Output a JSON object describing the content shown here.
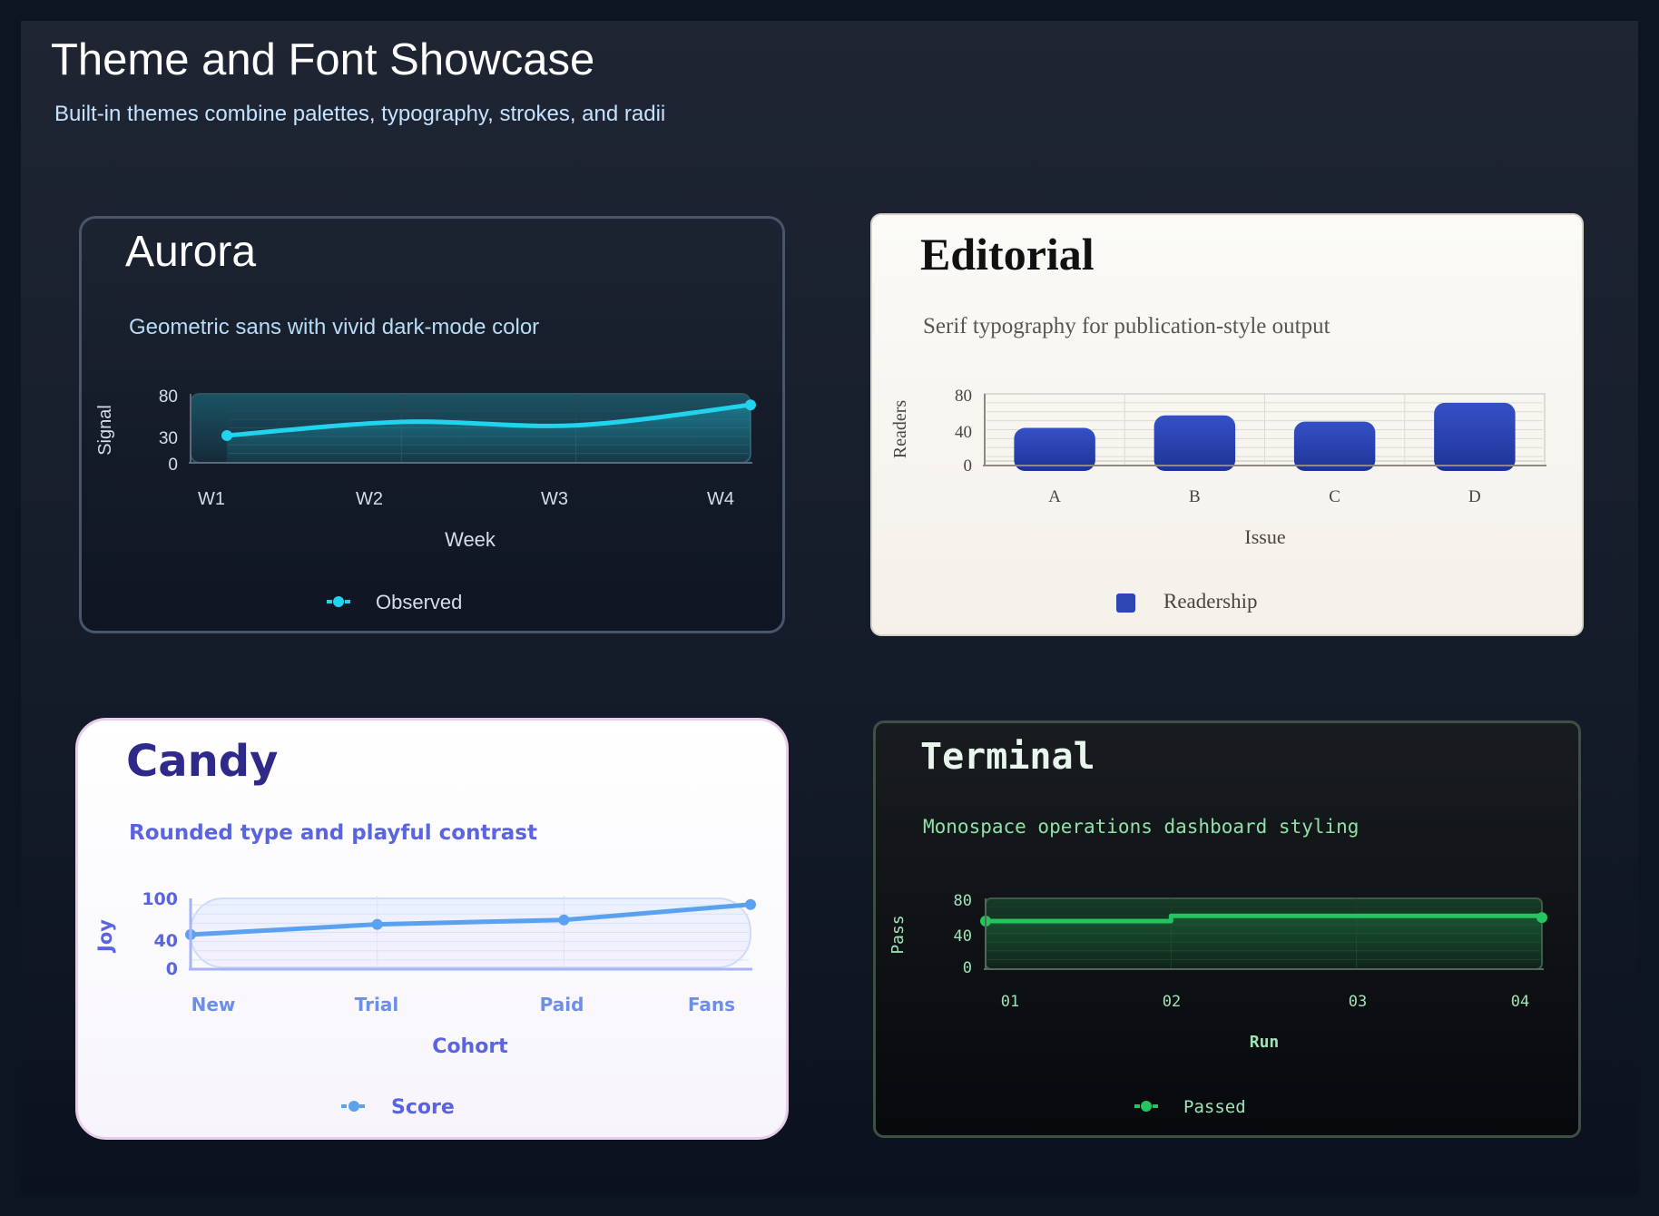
{
  "header": {
    "title": "Theme and Font Showcase",
    "subtitle": "Built-in themes combine palettes, typography, strokes, and radii"
  },
  "chart_data": [
    {
      "id": "aurora",
      "type": "area",
      "title": "Aurora",
      "subtitle": "Geometric sans with vivid dark-mode color",
      "xlabel": "Week",
      "ylabel": "Signal",
      "ylim": [
        0,
        80
      ],
      "yticks": [
        "0",
        "30",
        "80"
      ],
      "categories": [
        "W1",
        "W2",
        "W3",
        "W4"
      ],
      "series": [
        {
          "name": "Observed",
          "values": [
            31,
            47,
            43,
            67
          ]
        }
      ],
      "curve": "smooth",
      "grid": true,
      "legend_position": "bottom",
      "colors": {
        "accent": "#22d3ee",
        "text": "#d6dde8",
        "grid": "#2c4a55",
        "title": "#ffffff",
        "subtitle": "#b8dcf5",
        "axis": "#5a6b7c"
      }
    },
    {
      "id": "editorial",
      "type": "bar",
      "title": "Editorial",
      "subtitle": "Serif typography for publication-style output",
      "xlabel": "Issue",
      "ylabel": "Readers",
      "ylim": [
        0,
        80
      ],
      "yticks": [
        "0",
        "40",
        "80"
      ],
      "categories": [
        "A",
        "B",
        "C",
        "D"
      ],
      "series": [
        {
          "name": "Readership",
          "values": [
            42,
            56,
            49,
            70
          ]
        }
      ],
      "grid": true,
      "legend_position": "bottom",
      "colors": {
        "accent": "#2d46b4",
        "text": "#4a4540",
        "grid": "#dedad2",
        "title": "#111111",
        "subtitle": "#5a5550",
        "axis": "#8d8983"
      }
    },
    {
      "id": "candy",
      "type": "line",
      "title": "Candy",
      "subtitle": "Rounded type and playful contrast",
      "xlabel": "Cohort",
      "ylabel": "Joy",
      "ylim": [
        0,
        100
      ],
      "yticks": [
        "0",
        "40",
        "100"
      ],
      "categories": [
        "New",
        "Trial",
        "Paid",
        "Fans"
      ],
      "series": [
        {
          "name": "Score",
          "values": [
            47,
            61,
            67,
            88
          ]
        }
      ],
      "curve": "linear",
      "grid": true,
      "legend_position": "bottom",
      "colors": {
        "accent": "#5aa2ef",
        "text": "#5b64e0",
        "grid": "#d7e3fb",
        "title": "#2f2a8a",
        "subtitle": "#5b64e0",
        "axis": "#a6b4f4"
      }
    },
    {
      "id": "terminal",
      "type": "line",
      "title": "Terminal",
      "subtitle": "Monospace operations dashboard styling",
      "xlabel": "Run",
      "ylabel": "Pass",
      "ylim": [
        0,
        80
      ],
      "yticks": [
        "0",
        "40",
        "80"
      ],
      "categories": [
        "01",
        "02",
        "03",
        "04"
      ],
      "series": [
        {
          "name": "Passed",
          "values": [
            54,
            60,
            60,
            58
          ]
        }
      ],
      "curve": "step",
      "grid": true,
      "legend_position": "bottom",
      "colors": {
        "accent": "#22c55e",
        "text": "#9fe3b6",
        "grid": "#1f3a29",
        "title": "#e8f5ec",
        "subtitle": "#8ee0a8",
        "axis": "#52685a"
      }
    }
  ]
}
